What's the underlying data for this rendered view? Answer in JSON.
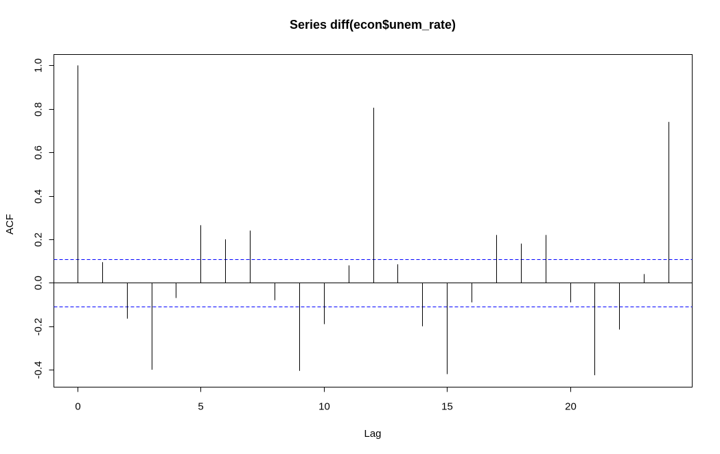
{
  "chart_data": {
    "type": "bar",
    "title": "Series  diff(econ$unem_rate)",
    "xlabel": "Lag",
    "ylabel": "ACF",
    "xlim": [
      -0.96,
      24.96
    ],
    "ylim": [
      -0.48,
      1.05
    ],
    "x_ticks": [
      0,
      5,
      10,
      15,
      20
    ],
    "y_ticks": [
      -0.4,
      -0.2,
      0.0,
      0.2,
      0.4,
      0.6,
      0.8,
      1.0
    ],
    "x_tick_labels": [
      "0",
      "5",
      "10",
      "15",
      "20"
    ],
    "y_tick_labels": [
      "-0.4",
      "-0.2",
      "0.0",
      "0.2",
      "0.4",
      "0.6",
      "0.8",
      "1.0"
    ],
    "lags": [
      0,
      1,
      2,
      3,
      4,
      5,
      6,
      7,
      8,
      9,
      10,
      11,
      12,
      13,
      14,
      15,
      16,
      17,
      18,
      19,
      20,
      21,
      22,
      23,
      24
    ],
    "acf": [
      1.0,
      0.095,
      -0.165,
      -0.4,
      -0.07,
      0.265,
      0.2,
      0.24,
      -0.08,
      -0.405,
      -0.19,
      0.08,
      0.805,
      0.085,
      -0.2,
      -0.42,
      -0.09,
      0.22,
      0.18,
      0.22,
      -0.09,
      -0.425,
      -0.215,
      0.04,
      0.74
    ],
    "confidence_bound": 0.109,
    "zero_line": true,
    "grid": false,
    "colors": {
      "bars": "#000000",
      "confidence_lines": "#0000ff",
      "axes": "#000000"
    }
  }
}
